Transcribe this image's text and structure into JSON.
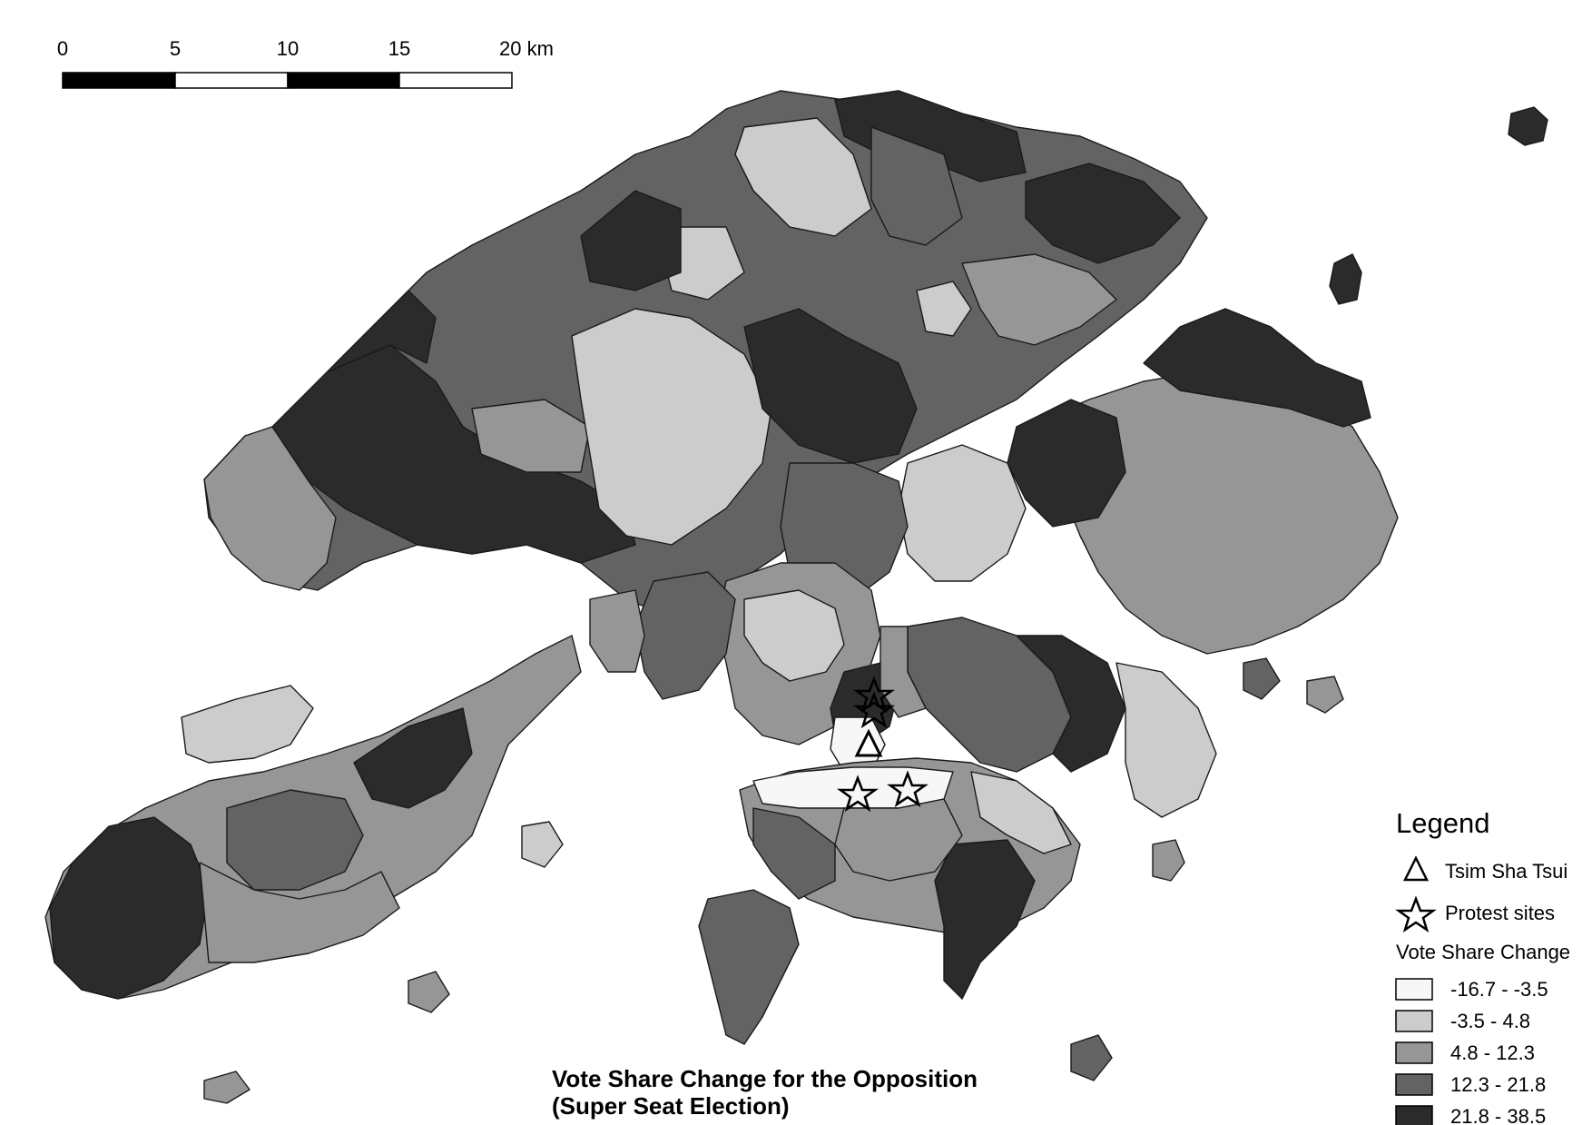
{
  "scale_bar": {
    "labels": [
      "0",
      "5",
      "10",
      "15",
      "20 km"
    ]
  },
  "legend": {
    "title": "Legend",
    "point_items": [
      {
        "symbol": "triangle",
        "label": "Tsim Sha Tsui"
      },
      {
        "symbol": "star",
        "label": "Protest sites"
      }
    ],
    "classes_title": "Vote Share Change",
    "classes": [
      {
        "label": "-16.7 - -3.5",
        "color": "#f7f7f7"
      },
      {
        "label": "-3.5 - 4.8",
        "color": "#cccccc"
      },
      {
        "label": "4.8 - 12.3",
        "color": "#969696"
      },
      {
        "label": "12.3 - 21.8",
        "color": "#636363"
      },
      {
        "label": "21.8 - 38.5",
        "color": "#2b2b2b"
      }
    ]
  },
  "title": {
    "line1": "Vote Share Change for the Opposition",
    "line2": "(Super Seat Election)"
  }
}
